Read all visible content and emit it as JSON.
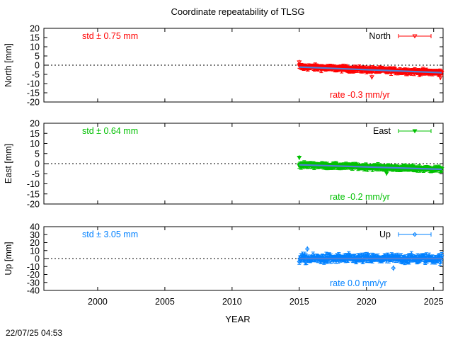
{
  "chart_data": [
    {
      "type": "scatter",
      "title": "Coordinate repeatability of TLSG",
      "xlabel": "YEAR",
      "ylabel": "North [mm]",
      "xlim": [
        1996,
        2025.7
      ],
      "ylim": [
        -20,
        20
      ],
      "yticks": [
        20,
        15,
        10,
        5,
        0,
        -5,
        -10,
        -15,
        -20
      ],
      "color": "#ff0000",
      "legend": {
        "label": "North",
        "position": "top-right"
      },
      "std_text": "std ± 0.75 mm",
      "rate_text": "rate -0.3 mm/yr",
      "series": [
        {
          "name": "North",
          "x_start": 2015.0,
          "x_end": 2025.6,
          "mean_start": -0.9,
          "mean_end": -4.1,
          "scatter": 0.75,
          "errorbar": 1.3
        }
      ],
      "trend": {
        "x": [
          2015.0,
          2025.6
        ],
        "y": [
          -1.0,
          -4.1
        ],
        "color": "#4d7fd9"
      },
      "outliers": [
        [
          2015.0,
          1.6
        ],
        [
          2020.4,
          -6.5
        ],
        [
          2025.5,
          -6.8
        ]
      ],
      "zero_line": true
    },
    {
      "type": "scatter",
      "xlabel": "YEAR",
      "ylabel": "East [mm]",
      "xlim": [
        1996,
        2025.7
      ],
      "ylim": [
        -20,
        20
      ],
      "yticks": [
        20,
        15,
        10,
        5,
        0,
        -5,
        -10,
        -15,
        -20
      ],
      "color": "#00c000",
      "legend": {
        "label": "East",
        "position": "top-right"
      },
      "std_text": "std ± 0.64 mm",
      "rate_text": "rate -0.2 mm/yr",
      "series": [
        {
          "name": "East",
          "x_start": 2015.0,
          "x_end": 2025.6,
          "mean_start": -0.6,
          "mean_end": -2.8,
          "scatter": 0.64,
          "errorbar": 1.2
        }
      ],
      "trend": {
        "x": [
          2015.0,
          2025.6
        ],
        "y": [
          -0.6,
          -2.8
        ],
        "color": "#4d7fd9"
      },
      "outliers": [
        [
          2015.0,
          3.0
        ],
        [
          2021.5,
          -4.8
        ]
      ],
      "zero_line": true
    },
    {
      "type": "scatter",
      "xlabel": "YEAR",
      "ylabel": "Up [mm]",
      "xlim": [
        1996,
        2025.7
      ],
      "ylim": [
        -40,
        40
      ],
      "yticks": [
        40,
        30,
        20,
        10,
        0,
        -10,
        -20,
        -30,
        -40
      ],
      "xticks": [
        2000,
        2005,
        2010,
        2015,
        2020,
        2025
      ],
      "color": "#0080ff",
      "legend": {
        "label": "Up",
        "position": "top-right"
      },
      "std_text": "std ± 3.05 mm",
      "rate_text": "rate  0.0 mm/yr",
      "series": [
        {
          "name": "Up",
          "x_start": 2015.0,
          "x_end": 2025.6,
          "mean_start": 0.0,
          "mean_end": 0.0,
          "scatter": 3.05,
          "errorbar": 3.5
        }
      ],
      "trend": {
        "x": [
          2015.0,
          2025.6
        ],
        "y": [
          0.0,
          0.0
        ],
        "color": "#4d7fd9"
      },
      "outliers": [
        [
          2022.0,
          -12.0
        ],
        [
          2015.6,
          12.0
        ]
      ],
      "zero_line": true
    }
  ],
  "timestamp": "22/07/25 04:53"
}
